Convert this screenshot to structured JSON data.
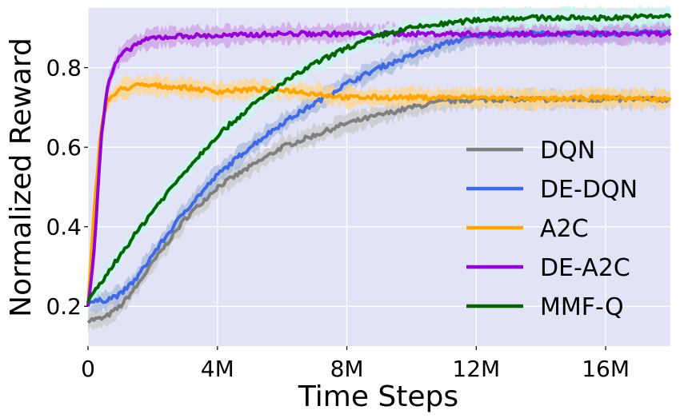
{
  "chart_data": {
    "type": "line",
    "xlabel": "Time Steps",
    "ylabel": "Normalized Reward",
    "xlim": [
      0,
      18000000
    ],
    "ylim": [
      0.1,
      0.95
    ],
    "xticks": [
      0,
      4000000,
      8000000,
      12000000,
      16000000
    ],
    "xtick_labels": [
      "0",
      "4M",
      "8M",
      "12M",
      "16M"
    ],
    "yticks": [
      0.2,
      0.4,
      0.6,
      0.8
    ],
    "ytick_labels": [
      "0.2",
      "0.4",
      "0.6",
      "0.8"
    ],
    "grid": true,
    "legend_position": "bottom-right",
    "background_color": "#e3e3f8",
    "series": [
      {
        "name": "DQN",
        "color": "#7f7f7f",
        "band_color": "#c8c8c8",
        "x": [
          0,
          500000,
          1000000,
          1500000,
          2000000,
          3000000,
          4000000,
          5000000,
          6000000,
          7000000,
          8000000,
          9000000,
          10000000,
          11000000,
          12000000,
          13000000,
          14000000,
          16000000,
          18000000
        ],
        "y": [
          0.165,
          0.17,
          0.2,
          0.25,
          0.31,
          0.42,
          0.5,
          0.55,
          0.6,
          0.63,
          0.66,
          0.68,
          0.7,
          0.715,
          0.72,
          0.72,
          0.72,
          0.72,
          0.72
        ]
      },
      {
        "name": "DE-DQN",
        "color": "#4169e1",
        "band_color": "#a9bbdc",
        "x": [
          0,
          500000,
          1000000,
          1500000,
          2000000,
          3000000,
          4000000,
          5000000,
          6000000,
          7000000,
          8000000,
          9000000,
          10000000,
          11000000,
          12000000,
          13000000,
          14000000,
          16000000,
          18000000
        ],
        "y": [
          0.21,
          0.215,
          0.23,
          0.27,
          0.33,
          0.44,
          0.53,
          0.6,
          0.66,
          0.71,
          0.76,
          0.8,
          0.83,
          0.86,
          0.88,
          0.885,
          0.885,
          0.885,
          0.89
        ]
      },
      {
        "name": "A2C",
        "color": "#ffa500",
        "band_color": "#ffd58a",
        "x": [
          0,
          200000,
          400000,
          600000,
          800000,
          1000000,
          1500000,
          2000000,
          3000000,
          4000000,
          5000000,
          6000000,
          8000000,
          10000000,
          12000000,
          14000000,
          16000000,
          18000000
        ],
        "y": [
          0.2,
          0.45,
          0.65,
          0.72,
          0.73,
          0.745,
          0.755,
          0.755,
          0.75,
          0.74,
          0.745,
          0.745,
          0.725,
          0.725,
          0.725,
          0.72,
          0.725,
          0.72
        ]
      },
      {
        "name": "DE-A2C",
        "color": "#9400d3",
        "band_color": "#cf9fe6",
        "x": [
          0,
          200000,
          400000,
          600000,
          800000,
          1000000,
          1500000,
          2000000,
          3000000,
          4000000,
          6000000,
          8000000,
          10000000,
          12000000,
          14000000,
          16000000,
          18000000
        ],
        "y": [
          0.2,
          0.35,
          0.62,
          0.75,
          0.8,
          0.83,
          0.86,
          0.875,
          0.88,
          0.88,
          0.885,
          0.885,
          0.885,
          0.885,
          0.885,
          0.885,
          0.885
        ]
      },
      {
        "name": "MMF-Q",
        "color": "#006400",
        "band_color": "#c8f5ee",
        "x": [
          0,
          500000,
          1000000,
          2000000,
          3000000,
          4000000,
          5000000,
          6000000,
          7000000,
          8000000,
          9000000,
          10000000,
          11000000,
          12000000,
          13000000,
          14000000,
          16000000,
          18000000
        ],
        "y": [
          0.21,
          0.27,
          0.33,
          0.44,
          0.54,
          0.63,
          0.7,
          0.76,
          0.81,
          0.85,
          0.88,
          0.9,
          0.91,
          0.92,
          0.925,
          0.925,
          0.925,
          0.93
        ]
      }
    ]
  }
}
